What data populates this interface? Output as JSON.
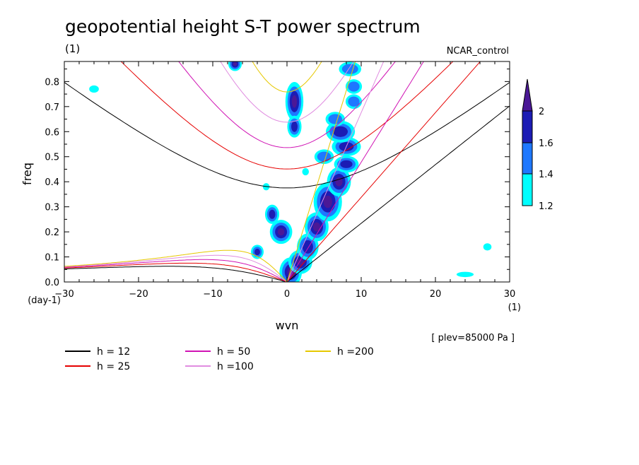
{
  "header": {
    "title": "geopotential height S-T power spectrum",
    "subtitle": "(1)",
    "run_label": "NCAR_control"
  },
  "footer": {
    "level_note": "[ plev=85000 Pa ]"
  },
  "chart_data": {
    "type": "contour",
    "xlabel": "wvn",
    "xunit": "(1)",
    "ylabel": "freq",
    "yunit": "(day-1)",
    "xlim": [
      -30,
      30
    ],
    "ylim": [
      0,
      0.88
    ],
    "xticks": [
      -30,
      -20,
      -10,
      0,
      10,
      20,
      30
    ],
    "yticks": [
      0.0,
      0.1,
      0.2,
      0.3,
      0.4,
      0.5,
      0.6,
      0.7,
      0.8
    ],
    "colorbar": {
      "levels": [
        "1.2",
        "1.4",
        "1.6",
        "2"
      ],
      "colors": [
        "#00ffff",
        "#1e78ff",
        "#1c1cb4",
        "#4b1896"
      ]
    },
    "dispersion_curves": [
      {
        "name": "h = 12",
        "h": 12,
        "color": "#000000"
      },
      {
        "name": "h = 25",
        "h": 25,
        "color": "#e60000"
      },
      {
        "name": "h = 50",
        "h": 50,
        "color": "#d014b4"
      },
      {
        "name": "h =100",
        "h": 100,
        "color": "#e08ce0"
      },
      {
        "name": "h =200",
        "h": 200,
        "color": "#e6c800"
      }
    ],
    "power_blobs": [
      {
        "x": 1.0,
        "y": 0.72,
        "rx": 0.6,
        "ry": 0.06,
        "level": 4
      },
      {
        "x": 1.0,
        "y": 0.62,
        "rx": 0.5,
        "ry": 0.03,
        "level": 3
      },
      {
        "x": -0.8,
        "y": 0.2,
        "rx": 0.9,
        "ry": 0.03,
        "level": 4
      },
      {
        "x": -2.0,
        "y": 0.27,
        "rx": 0.5,
        "ry": 0.025,
        "level": 3
      },
      {
        "x": -4.0,
        "y": 0.12,
        "rx": 0.4,
        "ry": 0.015,
        "level": 3
      },
      {
        "x": 0.5,
        "y": 0.04,
        "rx": 0.9,
        "ry": 0.04,
        "level": 4
      },
      {
        "x": 1.8,
        "y": 0.08,
        "rx": 1.0,
        "ry": 0.03,
        "level": 4
      },
      {
        "x": 2.8,
        "y": 0.14,
        "rx": 1.0,
        "ry": 0.04,
        "level": 3
      },
      {
        "x": 4.0,
        "y": 0.22,
        "rx": 1.0,
        "ry": 0.04,
        "level": 4
      },
      {
        "x": 5.5,
        "y": 0.32,
        "rx": 1.3,
        "ry": 0.06,
        "level": 4
      },
      {
        "x": 7.0,
        "y": 0.4,
        "rx": 1.0,
        "ry": 0.04,
        "level": 4
      },
      {
        "x": 8.0,
        "y": 0.47,
        "rx": 1.2,
        "ry": 0.02,
        "level": 3
      },
      {
        "x": 8.0,
        "y": 0.54,
        "rx": 1.5,
        "ry": 0.025,
        "level": 3
      },
      {
        "x": 7.2,
        "y": 0.6,
        "rx": 1.5,
        "ry": 0.03,
        "level": 3
      },
      {
        "x": 6.5,
        "y": 0.65,
        "rx": 1.0,
        "ry": 0.02,
        "level": 2
      },
      {
        "x": 9.0,
        "y": 0.72,
        "rx": 0.8,
        "ry": 0.02,
        "level": 2
      },
      {
        "x": 9.0,
        "y": 0.78,
        "rx": 0.8,
        "ry": 0.02,
        "level": 2
      },
      {
        "x": 8.5,
        "y": 0.85,
        "rx": 1.2,
        "ry": 0.02,
        "level": 2
      },
      {
        "x": 5.0,
        "y": 0.5,
        "rx": 1.0,
        "ry": 0.02,
        "level": 2
      },
      {
        "x": -7.0,
        "y": 0.87,
        "rx": 0.3,
        "ry": 0.01,
        "level": 4
      },
      {
        "x": -26.0,
        "y": 0.77,
        "rx": 0.5,
        "ry": 0.01,
        "level": 1
      },
      {
        "x": 27.0,
        "y": 0.14,
        "rx": 0.4,
        "ry": 0.01,
        "level": 1
      },
      {
        "x": 24.0,
        "y": 0.03,
        "rx": 1.0,
        "ry": 0.006,
        "level": 1
      },
      {
        "x": 2.5,
        "y": 0.44,
        "rx": 0.3,
        "ry": 0.01,
        "level": 1
      },
      {
        "x": -2.8,
        "y": 0.38,
        "rx": 0.3,
        "ry": 0.01,
        "level": 1
      }
    ]
  }
}
